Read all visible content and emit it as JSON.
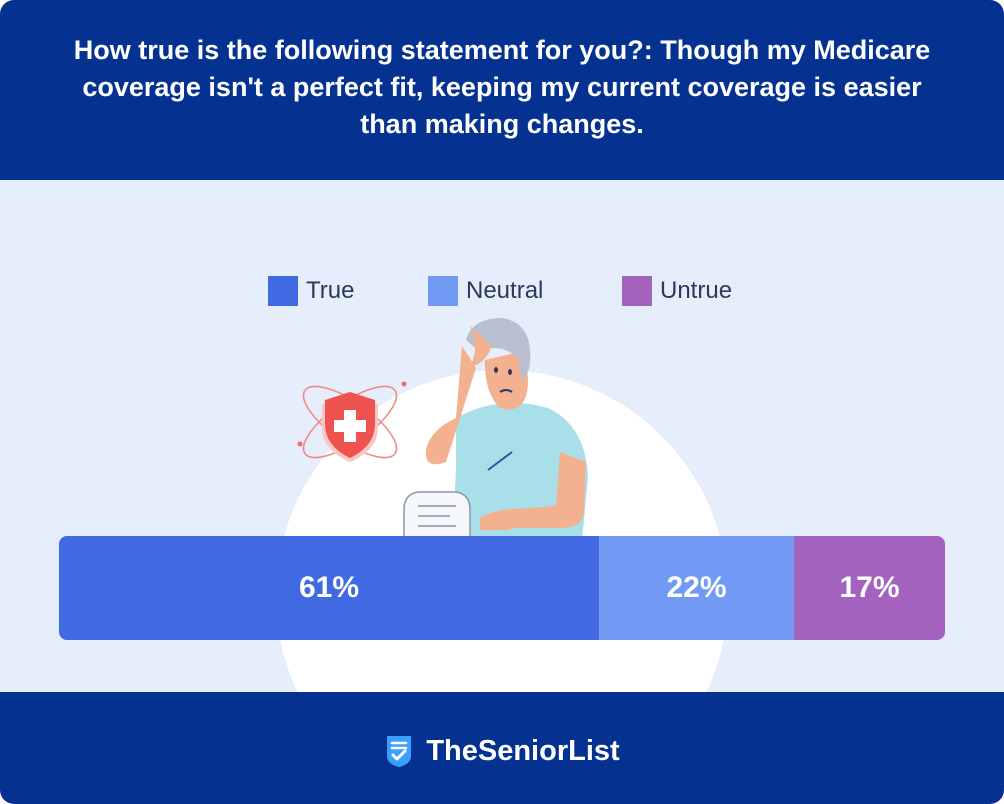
{
  "chart_data": {
    "type": "bar",
    "orientation": "horizontal-stacked",
    "title": "How true is the following statement for you?: Though my Medicare coverage isn't a perfect fit, keeping my current coverage is easier than making changes.",
    "legend_placement": "top-center",
    "categories": [
      ""
    ],
    "series": [
      {
        "name": "True",
        "values": [
          61
        ],
        "label": "61%",
        "color": "#4169e1"
      },
      {
        "name": "Neutral",
        "values": [
          22
        ],
        "label": "22%",
        "color": "#729af5"
      },
      {
        "name": "Untrue",
        "values": [
          17
        ],
        "label": "17%",
        "color": "#a262be"
      }
    ],
    "total": 100
  },
  "footer": {
    "brand_name": "TheSeniorList"
  },
  "icons": {
    "brand": "checklist-shield-icon",
    "illustration": "confused-man-with-shield-illustration"
  }
}
